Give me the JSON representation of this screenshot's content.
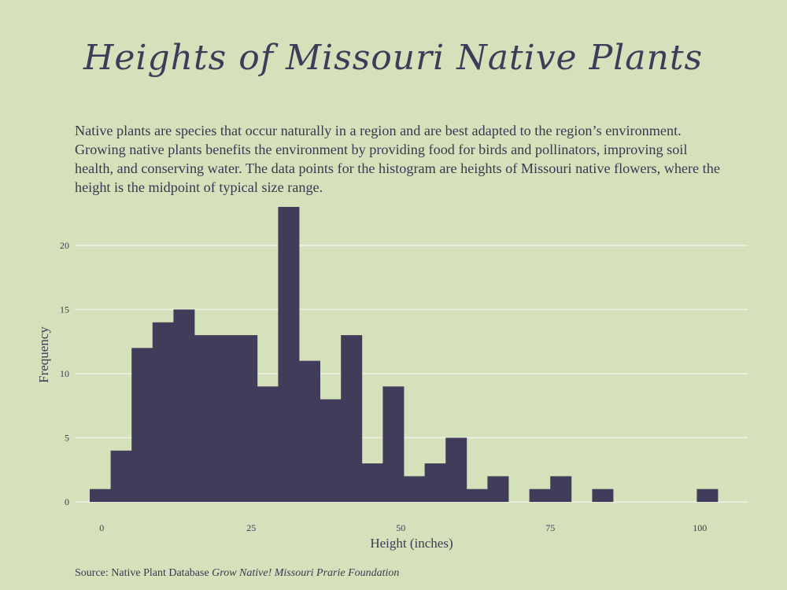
{
  "chart_data": {
    "type": "bar",
    "title": "Heights of Missouri Native Plants",
    "subtitle": "Native plants are species that occur naturally in a region and are best adapted to the region’s environment. Growing native plants benefits the environment by providing food for birds and pollinators, improving soil health, and conserving water. The data points for the histogram are heights of Missouri native flowers, where the height is the midpoint of typical size range.",
    "xlabel": "Height (inches)",
    "ylabel": "Frequency",
    "xlim": [
      -4.5,
      108
    ],
    "ylim": [
      0,
      23
    ],
    "x_ticks": [
      0,
      25,
      50,
      75,
      100
    ],
    "y_ticks": [
      0,
      5,
      10,
      15,
      20
    ],
    "grid": "horizontal",
    "bin_width": 3.5,
    "bins": [
      {
        "x0": -2,
        "x1": 1.5,
        "count": 1
      },
      {
        "x0": 1.5,
        "x1": 5,
        "count": 4
      },
      {
        "x0": 5,
        "x1": 8.5,
        "count": 12
      },
      {
        "x0": 8.5,
        "x1": 12,
        "count": 14
      },
      {
        "x0": 12,
        "x1": 15.5,
        "count": 15
      },
      {
        "x0": 15.5,
        "x1": 19,
        "count": 13
      },
      {
        "x0": 19,
        "x1": 22.5,
        "count": 13
      },
      {
        "x0": 22.5,
        "x1": 26,
        "count": 13
      },
      {
        "x0": 26,
        "x1": 29.5,
        "count": 9
      },
      {
        "x0": 29.5,
        "x1": 33,
        "count": 23
      },
      {
        "x0": 33,
        "x1": 36.5,
        "count": 11
      },
      {
        "x0": 36.5,
        "x1": 40,
        "count": 8
      },
      {
        "x0": 40,
        "x1": 43.5,
        "count": 13
      },
      {
        "x0": 43.5,
        "x1": 47,
        "count": 3
      },
      {
        "x0": 47,
        "x1": 50.5,
        "count": 9
      },
      {
        "x0": 50.5,
        "x1": 54,
        "count": 2
      },
      {
        "x0": 54,
        "x1": 57.5,
        "count": 3
      },
      {
        "x0": 57.5,
        "x1": 61,
        "count": 5
      },
      {
        "x0": 61,
        "x1": 64.5,
        "count": 1
      },
      {
        "x0": 64.5,
        "x1": 68,
        "count": 2
      },
      {
        "x0": 68,
        "x1": 71.5,
        "count": 0
      },
      {
        "x0": 71.5,
        "x1": 75,
        "count": 1
      },
      {
        "x0": 75,
        "x1": 78.5,
        "count": 2
      },
      {
        "x0": 78.5,
        "x1": 82,
        "count": 0
      },
      {
        "x0": 82,
        "x1": 85.5,
        "count": 1
      },
      {
        "x0": 85.5,
        "x1": 89,
        "count": 0
      },
      {
        "x0": 89,
        "x1": 92.5,
        "count": 0
      },
      {
        "x0": 92.5,
        "x1": 96,
        "count": 0
      },
      {
        "x0": 96,
        "x1": 99.5,
        "count": 0
      },
      {
        "x0": 99.5,
        "x1": 103,
        "count": 1
      }
    ],
    "colors": {
      "background": "#d5e1bb",
      "bar": "#413c5a",
      "grid": "#eef2e6",
      "text": "#3d3b55"
    }
  },
  "source": {
    "prefix": "Source: Native Plant Database ",
    "publisher": "Grow Native! Missouri Prarie Foundation"
  }
}
